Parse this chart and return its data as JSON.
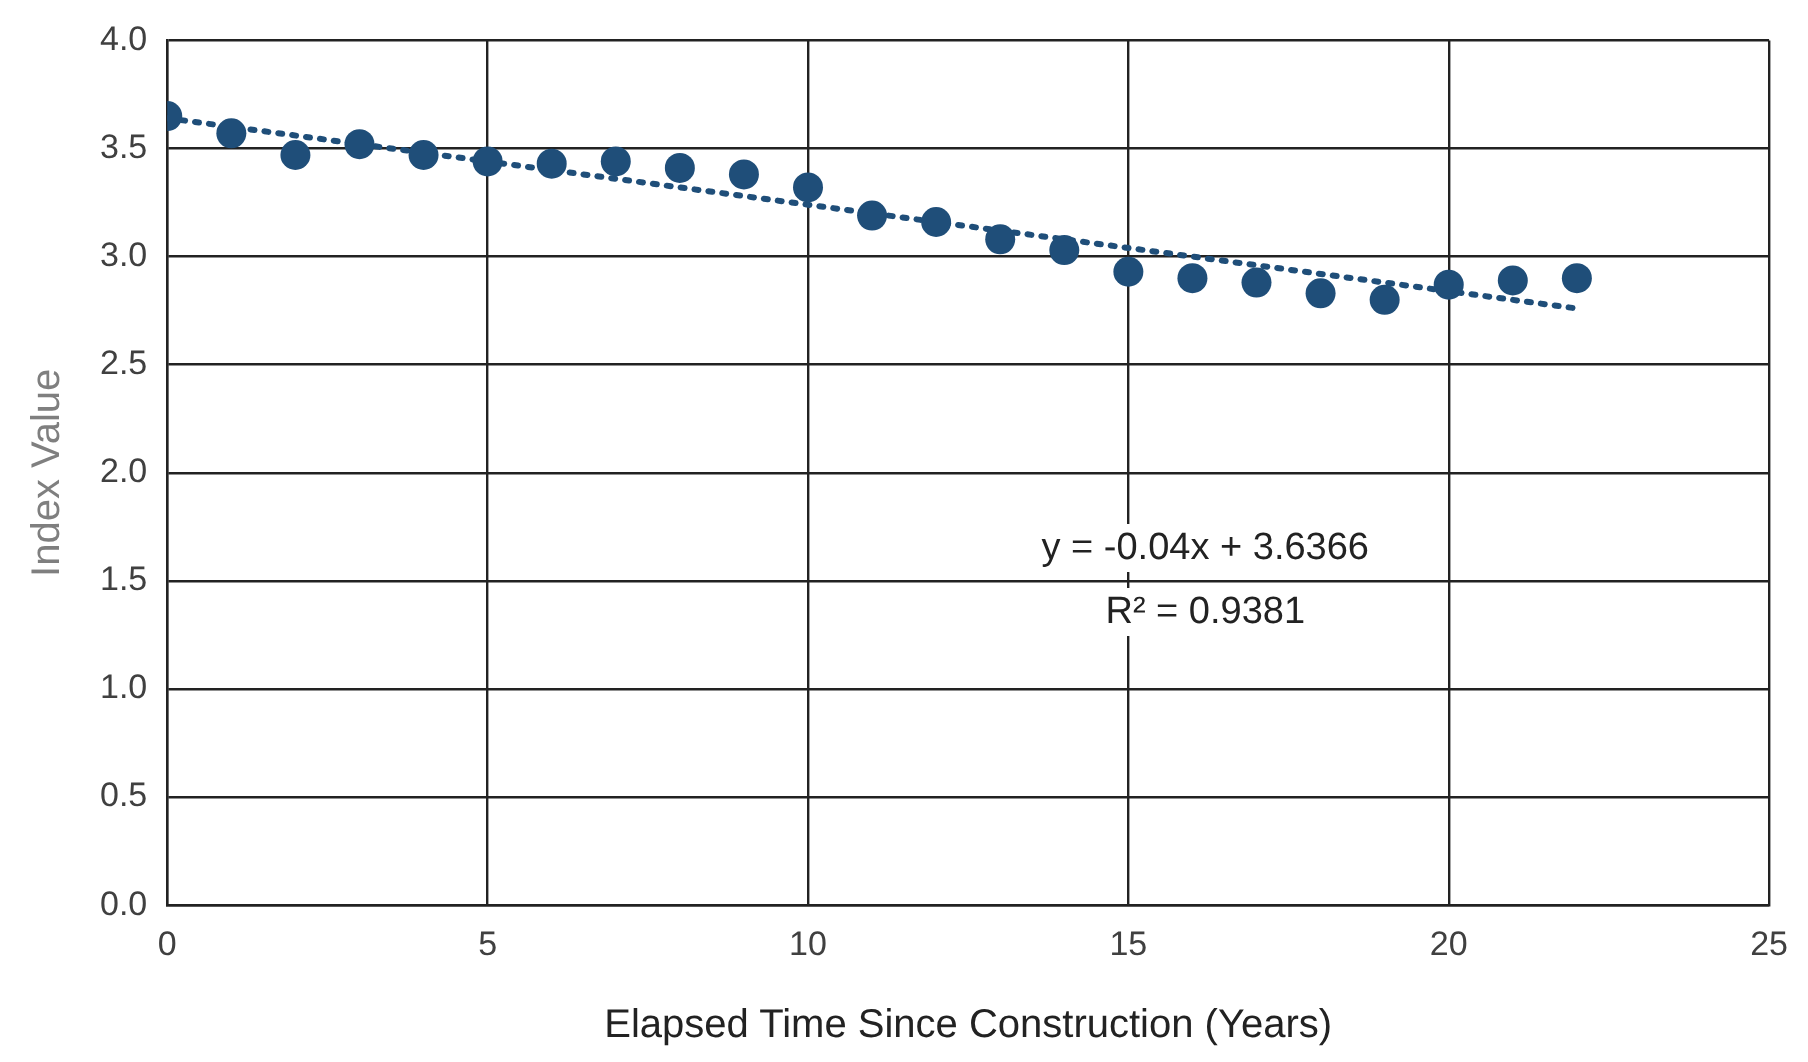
{
  "chart_data": {
    "type": "scatter",
    "xlabel": "Elapsed Time Since Construction (Years)",
    "ylabel": "Index Value",
    "x": [
      0,
      1,
      2,
      3,
      4,
      5,
      6,
      7,
      8,
      9,
      10,
      11,
      12,
      13,
      14,
      15,
      16,
      17,
      18,
      19,
      20,
      21,
      22
    ],
    "series": [
      {
        "type": "scatter",
        "color": "#1f4e79",
        "marker": "circle",
        "values": [
          3.65,
          3.57,
          3.47,
          3.52,
          3.47,
          3.44,
          3.43,
          3.44,
          3.41,
          3.38,
          3.32,
          3.19,
          3.16,
          3.08,
          3.03,
          2.93,
          2.9,
          2.88,
          2.83,
          2.8,
          2.87,
          2.89,
          2.9
        ]
      },
      {
        "type": "line",
        "color": "#1f4e79",
        "line_style": "dotted",
        "marker": "none",
        "x": [
          0,
          22
        ],
        "values": [
          3.64,
          2.76
        ]
      }
    ],
    "annotations": [
      "y = -0.04x + 3.6366",
      "R² = 0.9381"
    ],
    "xlim": [
      0,
      25
    ],
    "xticks": [
      0,
      5,
      10,
      15,
      20,
      25
    ],
    "ylim": [
      0,
      4
    ],
    "yticks": [
      {
        "value": 0,
        "label": "0.0"
      },
      {
        "value": 0.5,
        "label": "0.5"
      },
      {
        "value": 1,
        "label": "1.0"
      },
      {
        "value": 1.5,
        "label": "1.5"
      },
      {
        "value": 2,
        "label": "2.0"
      },
      {
        "value": 2.5,
        "label": "2.5"
      },
      {
        "value": 3,
        "label": "3.0"
      },
      {
        "value": 3.5,
        "label": "3.5"
      },
      {
        "value": 4,
        "label": "4.0"
      }
    ],
    "grid": true,
    "legend": false
  }
}
